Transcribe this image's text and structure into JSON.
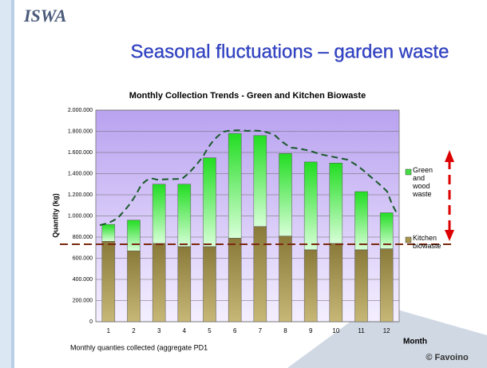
{
  "header": {
    "logo": "ISWA",
    "title": "Seasonal fluctuations – garden waste",
    "credit": "© Favoino"
  },
  "chart_data": {
    "type": "stacked_bar",
    "title": "Monthly Collection Trends - Green and Kitchen Biowaste",
    "y_label": "Quantity (kg)",
    "x_label": "Month",
    "footnote": "Monthly quanties collected (aggregate PD1",
    "categories": [
      "1",
      "2",
      "3",
      "4",
      "5",
      "6",
      "7",
      "8",
      "9",
      "10",
      "11",
      "12"
    ],
    "series": [
      {
        "name": "Kitchen biowaste",
        "color": "#a8964f",
        "values": [
          760000,
          670000,
          740000,
          710000,
          710000,
          790000,
          900000,
          810000,
          680000,
          740000,
          680000,
          690000
        ]
      },
      {
        "name": "Green and wood waste",
        "color": "#44dd44",
        "values": [
          160000,
          290000,
          560000,
          590000,
          840000,
          990000,
          860000,
          780000,
          830000,
          760000,
          550000,
          340000
        ]
      }
    ],
    "ylim": [
      0,
      2000000
    ],
    "yticks": [
      0,
      {
        "value": 200000,
        "label": "200.000"
      },
      {
        "value": 400000,
        "label": "400.000"
      },
      {
        "value": 600000,
        "label": "600.000"
      },
      {
        "value": 800000,
        "label": "800.000"
      },
      {
        "value": 1000000,
        "label": "1.000.000"
      },
      {
        "value": 1200000,
        "label": "1.200.000"
      },
      {
        "value": 1400000,
        "label": "1.400.000"
      },
      {
        "value": 1600000,
        "label": "1.600.000"
      },
      {
        "value": 1800000,
        "label": "1.800.000"
      },
      {
        "value": 2000000,
        "label": "2.000.000"
      }
    ],
    "grid": true,
    "legend": "right"
  }
}
